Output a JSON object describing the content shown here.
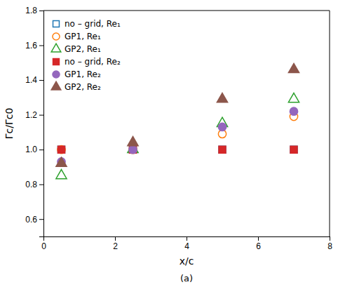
{
  "chart_data": {
    "type": "scatter",
    "subtitle": "(a)",
    "x_label": "x/c",
    "y_label": "Γc/Γc0",
    "xlim": [
      0,
      8
    ],
    "ylim": [
      0.5,
      1.8
    ],
    "xticks": [
      0,
      2,
      4,
      6,
      8
    ],
    "yticks": [
      0.6,
      0.8,
      {
        "value": 1.0,
        "label": "1.0"
      },
      1.2,
      1.4,
      1.6,
      1.8
    ],
    "grid": false,
    "legend": "upper left",
    "series": [
      {
        "name": "no – grid, Re₁",
        "marker": "square-open",
        "x": [
          0.5,
          2.5,
          5.0,
          7.0
        ],
        "values": [
          1.0,
          1.0,
          1.0,
          1.0
        ]
      },
      {
        "name": "GP1, Re₁",
        "marker": "circle-open",
        "x": [
          0.5,
          2.5,
          5.0,
          7.0
        ],
        "values": [
          1.0,
          1.0,
          1.09,
          1.19
        ]
      },
      {
        "name": "GP2, Re₁",
        "marker": "triangle-open",
        "x": [
          0.5,
          2.5,
          5.0,
          7.0
        ],
        "values": [
          0.85,
          1.0,
          1.15,
          1.29
        ]
      },
      {
        "name": "no – grid, Re₂",
        "marker": "square",
        "x": [
          0.5,
          2.5,
          5.0,
          7.0
        ],
        "values": [
          1.0,
          1.0,
          1.0,
          1.0
        ]
      },
      {
        "name": "GP1, Re₂",
        "marker": "circle",
        "x": [
          0.5,
          2.5,
          5.0,
          7.0
        ],
        "values": [
          0.93,
          1.0,
          1.13,
          1.22
        ]
      },
      {
        "name": "GP2, Re₂",
        "marker": "triangle",
        "x": [
          0.5,
          2.5,
          5.0,
          7.0
        ],
        "values": [
          0.92,
          1.04,
          1.29,
          1.46
        ]
      }
    ]
  }
}
